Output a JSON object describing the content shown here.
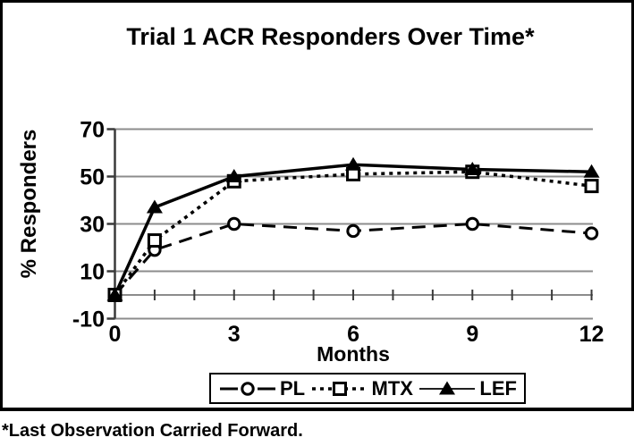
{
  "figure": {
    "title": "Trial 1 ACR Responders Over Time*",
    "footnote": "*Last Observation Carried Forward."
  },
  "chart_data": {
    "type": "line",
    "title": "Trial 1 ACR Responders Over Time*",
    "xlabel": "Months",
    "ylabel": "% Responders",
    "x": [
      0,
      1,
      3,
      6,
      9,
      12
    ],
    "xticks": [
      0,
      3,
      6,
      9,
      12
    ],
    "yticks": [
      -10,
      10,
      30,
      50,
      70
    ],
    "xlim": [
      0,
      12
    ],
    "ylim": [
      -10,
      70
    ],
    "grid": "horizontal gray gridlines at -10, 10, 30, 50, 70; x axis drawn at 0 with minor ticks at every month",
    "legend_position": "bottom",
    "series": [
      {
        "name": "PL",
        "line": "dashed",
        "marker": "circle",
        "marker_fill": "white",
        "values": [
          0,
          19,
          30,
          27,
          30,
          26
        ]
      },
      {
        "name": "MTX",
        "line": "dotted",
        "marker": "square",
        "marker_fill": "white",
        "values": [
          0,
          23,
          48,
          51,
          52,
          46
        ]
      },
      {
        "name": "LEF",
        "line": "solid",
        "marker": "triangle",
        "marker_fill": "black",
        "values": [
          0,
          37,
          50,
          55,
          53,
          52
        ]
      }
    ],
    "colors": {
      "series_line": "#000000",
      "grid": "#8c8c8c",
      "axis": "#3a3a3a",
      "text": "#000000",
      "background": "#ffffff"
    }
  }
}
